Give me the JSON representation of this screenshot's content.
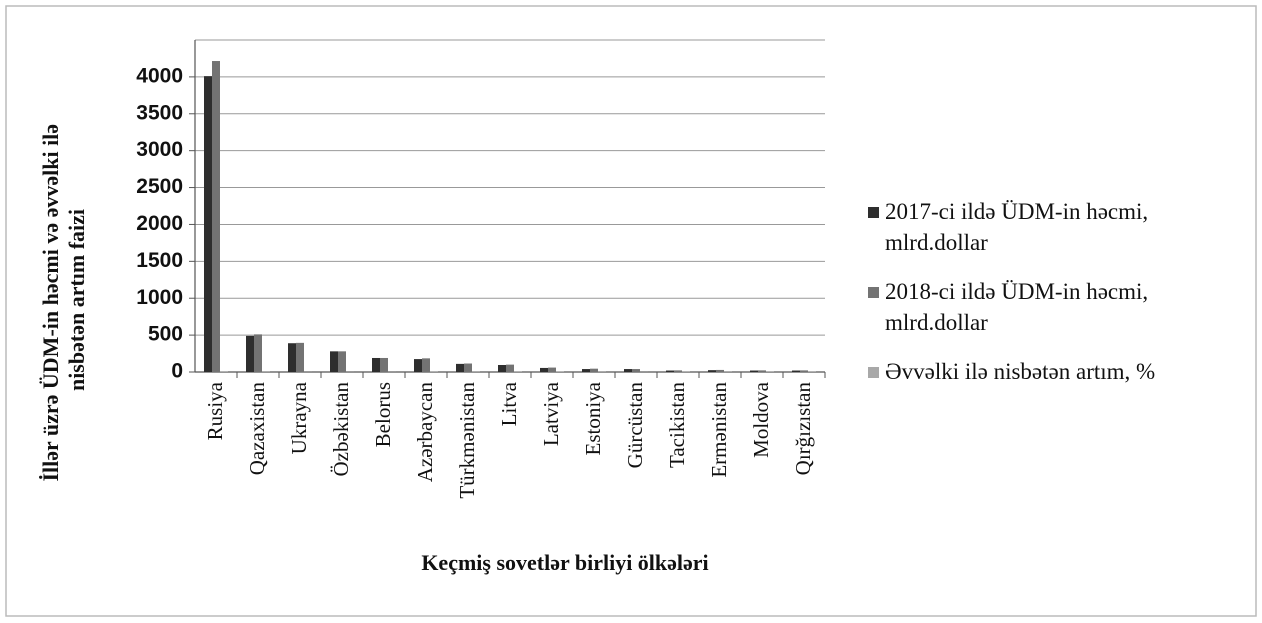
{
  "chart_data": {
    "type": "bar",
    "y_label": [
      "İllər üzrə ÜDM-in həcmi və əvvəlki ilə",
      "nisbətən artım faizi"
    ],
    "x_label": "Keçmiş sovetlər birliyi ölkələri",
    "categories": [
      "Rusiya",
      "Qazaxistan",
      "Ukrayna",
      "Özbəkistan",
      "Belorus",
      "Azərbaycan",
      "Türkmənistan",
      "Litva",
      "Latviya",
      "Estoniya",
      "Gürcüstan",
      "Tacikistan",
      "Ermənistan",
      "Moldova",
      "Qırğızıstan"
    ],
    "series": [
      {
        "name": "2017-ci ildə ÜDM-in həcmi, mlrd.dollar",
        "color": "#2e2e2e",
        "values": [
          4010,
          490,
          390,
          280,
          190,
          175,
          110,
          95,
          55,
          40,
          40,
          20,
          25,
          20,
          20
        ]
      },
      {
        "name": "2018-ci ildə ÜDM-in həcmi, mlrd.dollar",
        "color": "#737373",
        "values": [
          4215,
          510,
          395,
          280,
          190,
          185,
          115,
          100,
          60,
          45,
          40,
          22,
          28,
          22,
          22
        ]
      },
      {
        "name": "Əvvəlki ilə nisbətən artım, %",
        "color": "#a8a8a8",
        "values": [
          5,
          4,
          1,
          1,
          1,
          5,
          4,
          5,
          9,
          12,
          1,
          10,
          12,
          10,
          10
        ]
      }
    ],
    "ylim": [
      0,
      4500
    ],
    "yticks": [
      0,
      500,
      1000,
      1500,
      2000,
      2500,
      3000,
      3500,
      4000
    ],
    "grid": true
  }
}
